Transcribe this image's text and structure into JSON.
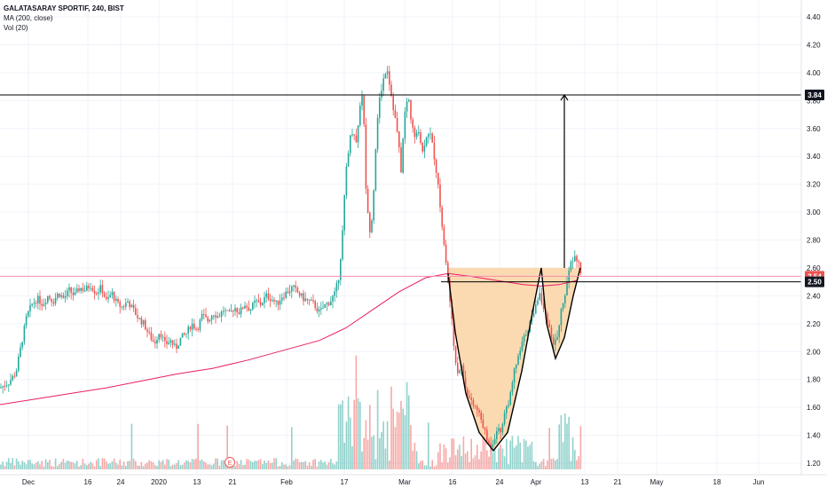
{
  "legend": {
    "title": "GALATASARAY SPORTIF, 240, BIST",
    "ma": "MA (200, close)",
    "vol": "Vol (20)"
  },
  "colors": {
    "up": "#26a69a",
    "down": "#ef5350",
    "ma": "#e91e63",
    "cup_fill": "#fbd4a3",
    "line": "#000000",
    "hline": "#f48fb1"
  },
  "chart_data": {
    "type": "candlestick",
    "ylim": [
      1.15,
      4.48
    ],
    "y_ticks": [
      1.2,
      1.4,
      1.6,
      1.8,
      2.0,
      2.2,
      2.4,
      2.6,
      2.8,
      3.0,
      3.2,
      3.4,
      3.6,
      3.8,
      4.0,
      4.2,
      4.4
    ],
    "x_ticks": [
      "Dec",
      "16",
      "24",
      "2020",
      "13",
      "21",
      "Feb",
      "17",
      "Mar",
      "16",
      "24",
      "Apr",
      "13",
      "21",
      "May",
      "18",
      "Jun"
    ],
    "price_tags": [
      {
        "label": "3.84",
        "value": 3.84,
        "style": "dark"
      },
      {
        "label": "2.54",
        "value": 2.54,
        "style": "red"
      },
      {
        "label": "2.50",
        "value": 2.5,
        "style": "dark"
      }
    ],
    "price_path": [
      [
        0,
        1.74
      ],
      [
        10,
        1.78
      ],
      [
        18,
        1.85
      ],
      [
        24,
        2.05
      ],
      [
        30,
        2.25
      ],
      [
        36,
        2.34
      ],
      [
        42,
        2.38
      ],
      [
        48,
        2.34
      ],
      [
        54,
        2.4
      ],
      [
        60,
        2.36
      ],
      [
        66,
        2.42
      ],
      [
        72,
        2.38
      ],
      [
        78,
        2.44
      ],
      [
        84,
        2.4
      ],
      [
        90,
        2.46
      ],
      [
        96,
        2.44
      ],
      [
        102,
        2.48
      ],
      [
        108,
        2.42
      ],
      [
        114,
        2.46
      ],
      [
        120,
        2.36
      ],
      [
        126,
        2.42
      ],
      [
        132,
        2.34
      ],
      [
        138,
        2.32
      ],
      [
        144,
        2.36
      ],
      [
        150,
        2.3
      ],
      [
        156,
        2.24
      ],
      [
        162,
        2.2
      ],
      [
        168,
        2.12
      ],
      [
        174,
        2.06
      ],
      [
        180,
        2.15
      ],
      [
        186,
        2.05
      ],
      [
        192,
        2.08
      ],
      [
        198,
        2.02
      ],
      [
        204,
        2.1
      ],
      [
        210,
        2.13
      ],
      [
        216,
        2.2
      ],
      [
        222,
        2.16
      ],
      [
        228,
        2.26
      ],
      [
        234,
        2.22
      ],
      [
        240,
        2.28
      ],
      [
        246,
        2.25
      ],
      [
        252,
        2.3
      ],
      [
        258,
        2.26
      ],
      [
        264,
        2.32
      ],
      [
        270,
        2.28
      ],
      [
        276,
        2.34
      ],
      [
        282,
        2.3
      ],
      [
        288,
        2.36
      ],
      [
        294,
        2.34
      ],
      [
        300,
        2.4
      ],
      [
        306,
        2.38
      ],
      [
        312,
        2.34
      ],
      [
        318,
        2.4
      ],
      [
        324,
        2.43
      ],
      [
        330,
        2.46
      ],
      [
        336,
        2.42
      ],
      [
        342,
        2.38
      ],
      [
        348,
        2.36
      ],
      [
        354,
        2.34
      ],
      [
        360,
        2.28
      ],
      [
        366,
        2.33
      ],
      [
        372,
        2.36
      ],
      [
        378,
        2.42
      ],
      [
        382,
        2.55
      ],
      [
        386,
        2.85
      ],
      [
        390,
        3.3
      ],
      [
        394,
        3.52
      ],
      [
        398,
        3.6
      ],
      [
        402,
        3.48
      ],
      [
        405,
        3.75
      ],
      [
        409,
        3.88
      ],
      [
        412,
        3.22
      ],
      [
        416,
        2.85
      ],
      [
        420,
        3.0
      ],
      [
        424,
        3.55
      ],
      [
        428,
        3.82
      ],
      [
        432,
        3.95
      ],
      [
        436,
        4.05
      ],
      [
        440,
        3.88
      ],
      [
        444,
        3.72
      ],
      [
        448,
        3.56
      ],
      [
        452,
        3.3
      ],
      [
        456,
        3.7
      ],
      [
        460,
        3.84
      ],
      [
        464,
        3.62
      ],
      [
        468,
        3.52
      ],
      [
        472,
        3.6
      ],
      [
        476,
        3.42
      ],
      [
        480,
        3.55
      ],
      [
        484,
        3.58
      ],
      [
        488,
        3.46
      ],
      [
        492,
        3.28
      ],
      [
        496,
        3.05
      ],
      [
        500,
        2.78
      ],
      [
        504,
        2.55
      ],
      [
        508,
        2.3
      ],
      [
        512,
        2.0
      ],
      [
        516,
        1.85
      ],
      [
        520,
        1.9
      ],
      [
        524,
        1.76
      ],
      [
        528,
        1.68
      ],
      [
        532,
        1.62
      ],
      [
        536,
        1.6
      ],
      [
        540,
        1.55
      ],
      [
        544,
        1.48
      ],
      [
        548,
        1.38
      ],
      [
        552,
        1.32
      ],
      [
        556,
        1.36
      ],
      [
        560,
        1.45
      ],
      [
        564,
        1.42
      ],
      [
        568,
        1.55
      ],
      [
        572,
        1.62
      ],
      [
        576,
        1.7
      ],
      [
        580,
        1.88
      ],
      [
        584,
        1.95
      ],
      [
        588,
        2.05
      ],
      [
        592,
        2.12
      ],
      [
        596,
        2.18
      ],
      [
        600,
        2.25
      ],
      [
        604,
        2.34
      ],
      [
        608,
        2.42
      ],
      [
        612,
        2.3
      ],
      [
        616,
        2.25
      ],
      [
        620,
        2.15
      ],
      [
        624,
        2.05
      ],
      [
        628,
        2.1
      ],
      [
        632,
        2.28
      ],
      [
        636,
        2.4
      ],
      [
        640,
        2.52
      ],
      [
        644,
        2.65
      ],
      [
        648,
        2.68
      ],
      [
        652,
        2.63
      ],
      [
        656,
        2.54
      ]
    ],
    "ma200": [
      [
        0,
        1.62
      ],
      [
        40,
        1.66
      ],
      [
        80,
        1.7
      ],
      [
        120,
        1.74
      ],
      [
        160,
        1.79
      ],
      [
        200,
        1.84
      ],
      [
        240,
        1.88
      ],
      [
        280,
        1.94
      ],
      [
        320,
        2.01
      ],
      [
        360,
        2.08
      ],
      [
        390,
        2.17
      ],
      [
        420,
        2.3
      ],
      [
        450,
        2.43
      ],
      [
        480,
        2.53
      ],
      [
        505,
        2.56
      ],
      [
        530,
        2.54
      ],
      [
        560,
        2.51
      ],
      [
        590,
        2.48
      ],
      [
        610,
        2.47
      ],
      [
        630,
        2.48
      ],
      [
        650,
        2.51
      ]
    ],
    "cup_pattern": {
      "cup": [
        [
          505,
          2.56
        ],
        [
          513,
          2.14
        ],
        [
          525,
          1.7
        ],
        [
          540,
          1.42
        ],
        [
          556,
          1.29
        ],
        [
          572,
          1.42
        ],
        [
          588,
          1.86
        ],
        [
          600,
          2.28
        ],
        [
          610,
          2.6
        ]
      ],
      "handle": [
        [
          610,
          2.6
        ],
        [
          616,
          2.2
        ],
        [
          626,
          1.95
        ],
        [
          636,
          2.1
        ],
        [
          646,
          2.4
        ],
        [
          654,
          2.6
        ]
      ],
      "rim": 2.6,
      "target_arrow": {
        "from": 2.6,
        "to": 3.84
      }
    },
    "horizontal_levels": [
      3.84,
      2.54,
      2.5
    ]
  }
}
